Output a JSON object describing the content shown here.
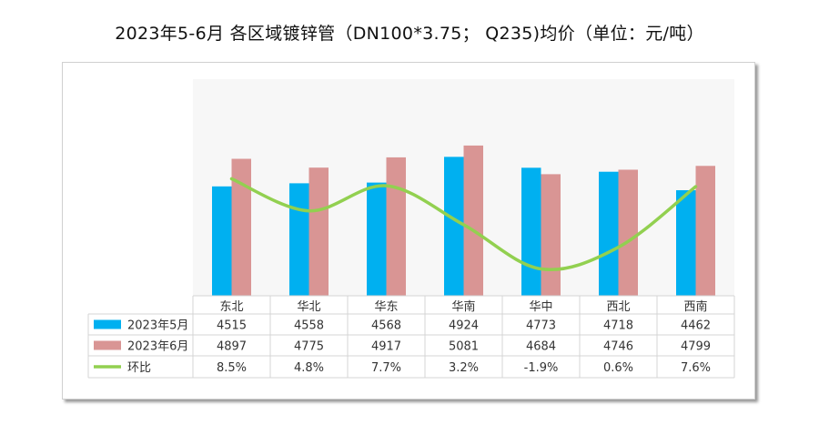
{
  "chart_data": {
    "type": "bar+line",
    "title": "2023年5-6月 各区域镀锌管（DN100*3.75； Q235)均价（单位：元/吨）",
    "categories": [
      "东北",
      "华北",
      "华东",
      "华南",
      "华中",
      "西北",
      "西南"
    ],
    "series": [
      {
        "name": "2023年5月",
        "type": "bar",
        "axis": "primary",
        "color": "#00b0f0",
        "values": [
          4515,
          4558,
          4568,
          4924,
          4773,
          4718,
          4462
        ]
      },
      {
        "name": "2023年6月",
        "type": "bar",
        "axis": "primary",
        "color": "#d99594",
        "values": [
          4897,
          4775,
          4917,
          5081,
          4684,
          4746,
          4799
        ]
      },
      {
        "name": "环比",
        "type": "line",
        "axis": "secondary",
        "smooth": true,
        "color": "#92d050",
        "values": [
          8.5,
          4.8,
          7.7,
          3.2,
          -1.9,
          0.6,
          7.6
        ],
        "labels": [
          "8.5%",
          "4.8%",
          "7.7%",
          "3.2%",
          "-1.9%",
          "0.6%",
          "7.6%"
        ]
      }
    ],
    "ylim": [
      3000,
      6000
    ],
    "y2lim": [
      -5,
      20
    ],
    "axes_visible": false,
    "grid": false,
    "legend": "data-table"
  }
}
